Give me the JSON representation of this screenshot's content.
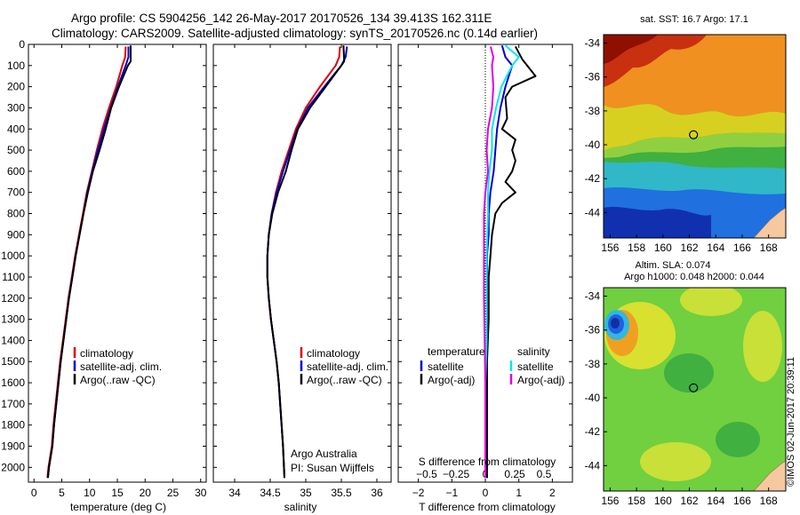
{
  "header": {
    "line1": "Argo profile: CS 5904256_142 26-May-2017 20170526_134 39.413S 162.311E",
    "line2": "Climatology: CARS2009. Satellite-adjusted climatology: synTS_20170526.nc (0.14d earlier)"
  },
  "colors": {
    "climatology": "#e00000",
    "satellite": "#0000d0",
    "argo": "#000000",
    "salinity_satellite": "#00e8f0",
    "salinity_argo": "#e000e0"
  },
  "chart_data": [
    {
      "type": "line",
      "id": "temperature",
      "xlabel": "temperature (deg C)",
      "ylabel": "",
      "xlim": [
        -1,
        31
      ],
      "ylim": [
        2070,
        0
      ],
      "xticks": [
        0,
        5,
        10,
        15,
        20,
        25,
        30
      ],
      "yticks": [
        0,
        100,
        200,
        300,
        400,
        500,
        600,
        700,
        800,
        900,
        1000,
        1100,
        1200,
        1300,
        1400,
        1500,
        1600,
        1700,
        1800,
        1900,
        2000
      ],
      "legend": {
        "position": "lower-left",
        "entries": [
          "climatology",
          "satellite-adj. clim.",
          "Argo(..raw -QC)"
        ]
      },
      "series": [
        {
          "name": "climatology",
          "color": "#e00000",
          "x": [
            16.5,
            16.4,
            15.9,
            14.8,
            13.5,
            12.3,
            11.3,
            10.4,
            9.5,
            8.8,
            8.1,
            7.4,
            6.8,
            6.2,
            5.7,
            5.2,
            4.7,
            4.3,
            3.9,
            3.5,
            3.2,
            2.9,
            2.6,
            2.4
          ],
          "y": [
            10,
            60,
            100,
            200,
            300,
            400,
            500,
            600,
            700,
            800,
            900,
            1000,
            1100,
            1200,
            1300,
            1400,
            1500,
            1600,
            1700,
            1800,
            1900,
            1950,
            2000,
            2050
          ]
        },
        {
          "name": "satellite-adj. clim.",
          "color": "#0000d0",
          "x": [
            17.0,
            17.0,
            16.5,
            15.1,
            13.8,
            12.6,
            11.5,
            10.5,
            9.6,
            8.9,
            8.2,
            7.5,
            6.9,
            6.3,
            5.8,
            5.3,
            4.8,
            4.4,
            4.0,
            3.6,
            3.3,
            3.0,
            2.7,
            2.5
          ],
          "y": [
            10,
            60,
            100,
            200,
            300,
            400,
            500,
            600,
            700,
            800,
            900,
            1000,
            1100,
            1200,
            1300,
            1400,
            1500,
            1600,
            1700,
            1800,
            1900,
            1950,
            2000,
            2050
          ]
        },
        {
          "name": "Argo(..raw -QC)",
          "color": "#000000",
          "x": [
            17.4,
            17.4,
            16.9,
            15.3,
            13.9,
            12.9,
            11.8,
            10.6,
            9.7,
            8.9,
            8.2,
            7.5,
            6.9,
            6.3,
            5.8,
            5.3,
            4.8,
            4.4,
            4.0,
            3.6,
            3.3,
            3.0,
            2.7,
            2.5
          ],
          "y": [
            5,
            80,
            100,
            200,
            300,
            400,
            500,
            600,
            700,
            800,
            900,
            1000,
            1100,
            1200,
            1300,
            1400,
            1500,
            1600,
            1700,
            1800,
            1900,
            1950,
            2000,
            2050
          ]
        }
      ]
    },
    {
      "type": "line",
      "id": "salinity",
      "xlabel": "salinity",
      "xlim": [
        33.7,
        36.2
      ],
      "ylim": [
        2070,
        0
      ],
      "xticks": [
        34,
        34.5,
        35,
        35.5,
        36
      ],
      "legend": {
        "position": "lower-left",
        "entries": [
          "climatology",
          "satellite-adj. clim.",
          "Argo(..raw -QC)"
        ]
      },
      "annotations": [
        "Argo Australia",
        "PI: Susan Wijffels"
      ],
      "series": [
        {
          "name": "climatology",
          "color": "#e00000",
          "x": [
            35.48,
            35.47,
            35.42,
            35.2,
            35.0,
            34.86,
            34.76,
            34.66,
            34.58,
            34.52,
            34.48,
            34.46,
            34.46,
            34.48,
            34.51,
            34.55,
            34.59,
            34.62,
            34.64,
            34.66,
            34.68,
            34.7
          ],
          "y": [
            10,
            60,
            100,
            200,
            300,
            400,
            500,
            600,
            700,
            800,
            900,
            1000,
            1100,
            1200,
            1300,
            1400,
            1500,
            1600,
            1700,
            1800,
            1900,
            2050
          ]
        },
        {
          "name": "satellite-adj. clim.",
          "color": "#0000d0",
          "x": [
            35.58,
            35.56,
            35.5,
            35.26,
            35.03,
            34.88,
            34.78,
            34.68,
            34.59,
            34.52,
            34.48,
            34.46,
            34.46,
            34.48,
            34.51,
            34.55,
            34.59,
            34.62,
            34.64,
            34.66,
            34.68,
            34.7
          ],
          "y": [
            10,
            60,
            100,
            200,
            300,
            400,
            500,
            600,
            700,
            800,
            900,
            1000,
            1100,
            1200,
            1300,
            1400,
            1500,
            1600,
            1700,
            1800,
            1900,
            2050
          ]
        },
        {
          "name": "Argo(..raw -QC)",
          "color": "#000000",
          "x": [
            35.53,
            35.54,
            35.5,
            35.28,
            35.06,
            34.89,
            34.8,
            34.72,
            34.61,
            34.53,
            34.48,
            34.46,
            34.46,
            34.48,
            34.51,
            34.55,
            34.59,
            34.62,
            34.64,
            34.66,
            34.68,
            34.7
          ],
          "y": [
            5,
            80,
            100,
            200,
            300,
            400,
            500,
            600,
            700,
            800,
            900,
            1000,
            1100,
            1200,
            1300,
            1400,
            1500,
            1600,
            1700,
            1800,
            1900,
            2050
          ]
        }
      ]
    },
    {
      "type": "line",
      "id": "difference",
      "xlabel": "T difference from climatology",
      "xlabel_top": "S difference from climatology",
      "xlim": [
        -2.6,
        2.6
      ],
      "ylim": [
        2070,
        0
      ],
      "xticks": [
        -2,
        -1,
        0,
        1,
        2
      ],
      "xticks_top": [
        -0.5,
        -0.25,
        0,
        0.25,
        0.5
      ],
      "legend": {
        "position": "lower",
        "groups": [
          {
            "title": "temperature",
            "entries": [
              "satellite",
              "Argo(-adj)"
            ]
          },
          {
            "title": "salinity",
            "entries": [
              "satellite",
              "Argo(-adj)"
            ]
          }
        ]
      },
      "series": [
        {
          "name": "temperature satellite",
          "color": "#0000d0",
          "x": [
            0.5,
            0.6,
            0.8,
            0.6,
            0.45,
            0.35,
            0.3,
            0.25,
            0.15,
            0.1,
            0.1,
            0.05,
            0.05,
            0.05,
            0.05,
            0.05,
            0.05,
            0.05,
            0.05,
            0.05
          ],
          "y": [
            5,
            60,
            100,
            200,
            300,
            400,
            500,
            600,
            700,
            800,
            900,
            1000,
            1100,
            1200,
            1300,
            1500,
            1600,
            1800,
            1900,
            2050
          ]
        },
        {
          "name": "temperature Argo(-adj)",
          "color": "#000000",
          "x": [
            0.9,
            1.1,
            1.5,
            0.8,
            0.6,
            0.65,
            0.5,
            0.9,
            0.8,
            0.9,
            0.8,
            0.6,
            0.9,
            0.5,
            0.3,
            0.2,
            0.15,
            0.1,
            0.1,
            0.05,
            0.05,
            0.05,
            0.05,
            0.05
          ],
          "y": [
            10,
            70,
            150,
            200,
            250,
            350,
            400,
            450,
            500,
            550,
            600,
            650,
            700,
            750,
            800,
            900,
            1000,
            1100,
            1300,
            1500,
            1600,
            1800,
            1900,
            2050
          ]
        },
        {
          "name": "salinity satellite",
          "color": "#00e8f0",
          "x": [
            0.15,
            0.25,
            0.2,
            0.12,
            0.08,
            0.05,
            0.05,
            0.03,
            0.02,
            0.02,
            0.01,
            0.01,
            0.01,
            0.0,
            0.0,
            0.0,
            0.0
          ],
          "y": [
            5,
            60,
            100,
            200,
            300,
            400,
            500,
            600,
            700,
            800,
            1000,
            1200,
            1400,
            1600,
            1800,
            1900,
            2050
          ]
        },
        {
          "name": "salinity Argo(-adj)",
          "color": "#e000e0",
          "x": [
            0.04,
            0.06,
            0.05,
            0.06,
            0.05,
            0.02,
            0.01,
            0.02,
            0.0,
            -0.01,
            -0.01,
            -0.01,
            0.0,
            0.0
          ],
          "y": [
            10,
            60,
            100,
            200,
            300,
            400,
            500,
            600,
            700,
            800,
            1000,
            1200,
            1600,
            2050
          ]
        }
      ]
    },
    {
      "type": "heatmap",
      "id": "sst-map",
      "title": "sat. SST: 16.7  Argo: 17.1",
      "xlim": [
        155.5,
        169.3
      ],
      "ylim": [
        -45.5,
        -33.5
      ],
      "xticks": [
        156,
        158,
        160,
        162,
        164,
        166,
        168
      ],
      "yticks": [
        -34,
        -36,
        -38,
        -40,
        -42,
        -44
      ],
      "marker": {
        "lon": 162.311,
        "lat": -39.413
      },
      "colorscale": "jet, warm in north, cold in south; land patch in south-east corner"
    },
    {
      "type": "heatmap",
      "id": "sla-map",
      "title": "Altim. SLA: 0.074",
      "subtitle": "Argo h1000: 0.048 h2000: 0.044",
      "xlim": [
        155.5,
        169.3
      ],
      "ylim": [
        -45.5,
        -33.5
      ],
      "xticks": [
        156,
        158,
        160,
        162,
        164,
        166,
        168
      ],
      "yticks": [
        -34,
        -36,
        -38,
        -40,
        -42,
        -44
      ],
      "marker": {
        "lon": 162.311,
        "lat": -39.413
      },
      "colorscale": "jet, mostly green and yellow; blue eddy near 156.5E 35.6S; land patch in south-east corner"
    }
  ],
  "labels": {
    "legend_climatology": "climatology",
    "legend_satellite": "satellite-adj. clim.",
    "legend_argo": "Argo(..raw -QC)",
    "argo_australia": "Argo Australia",
    "pi": "PI: Susan Wijffels",
    "diff_temp_title": "temperature",
    "diff_sal_title": "salinity",
    "diff_satellite": "satellite",
    "diff_argo": "Argo(-adj)",
    "timestamp": "©IMOS 02-Jun-2017 20:39:11"
  }
}
